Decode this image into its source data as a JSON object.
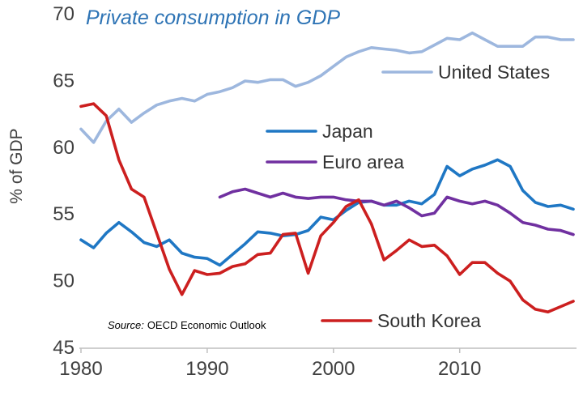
{
  "chart_data": {
    "type": "line",
    "title": "Private consumption in GDP",
    "ylabel": "% of GDP",
    "xlabel": "",
    "xlim": [
      1980,
      2019
    ],
    "ylim": [
      45,
      70
    ],
    "x_ticks": [
      "1980",
      "1990",
      "2000",
      "2010"
    ],
    "y_ticks": [
      "45",
      "50",
      "55",
      "60",
      "65",
      "70"
    ],
    "grid": false,
    "legend_placement": "inline",
    "source_label": "Source:",
    "source_text": "OECD Economic Outlook",
    "series": [
      {
        "name": "United States",
        "color": "#9db7de",
        "points": [
          [
            1980,
            61.3
          ],
          [
            1981,
            60.3
          ],
          [
            1982,
            61.9
          ],
          [
            1983,
            62.8
          ],
          [
            1984,
            61.8
          ],
          [
            1985,
            62.5
          ],
          [
            1986,
            63.1
          ],
          [
            1987,
            63.4
          ],
          [
            1988,
            63.6
          ],
          [
            1989,
            63.4
          ],
          [
            1990,
            63.9
          ],
          [
            1991,
            64.1
          ],
          [
            1992,
            64.4
          ],
          [
            1993,
            64.9
          ],
          [
            1994,
            64.8
          ],
          [
            1995,
            65.0
          ],
          [
            1996,
            65.0
          ],
          [
            1997,
            64.5
          ],
          [
            1998,
            64.8
          ],
          [
            1999,
            65.3
          ],
          [
            2000,
            66.0
          ],
          [
            2001,
            66.7
          ],
          [
            2002,
            67.1
          ],
          [
            2003,
            67.4
          ],
          [
            2004,
            67.3
          ],
          [
            2005,
            67.2
          ],
          [
            2006,
            67.0
          ],
          [
            2007,
            67.1
          ],
          [
            2008,
            67.6
          ],
          [
            2009,
            68.1
          ],
          [
            2010,
            68.0
          ],
          [
            2011,
            68.5
          ],
          [
            2012,
            68.0
          ],
          [
            2013,
            67.5
          ],
          [
            2014,
            67.5
          ],
          [
            2015,
            67.5
          ],
          [
            2016,
            68.2
          ],
          [
            2017,
            68.2
          ],
          [
            2018,
            68.0
          ],
          [
            2019,
            68.0
          ]
        ]
      },
      {
        "name": "Japan",
        "color": "#1f77c4",
        "points": [
          [
            1980,
            53.0
          ],
          [
            1981,
            52.4
          ],
          [
            1982,
            53.5
          ],
          [
            1983,
            54.3
          ],
          [
            1984,
            53.6
          ],
          [
            1985,
            52.8
          ],
          [
            1986,
            52.5
          ],
          [
            1987,
            53.0
          ],
          [
            1988,
            52.0
          ],
          [
            1989,
            51.7
          ],
          [
            1990,
            51.6
          ],
          [
            1991,
            51.1
          ],
          [
            1992,
            51.9
          ],
          [
            1993,
            52.7
          ],
          [
            1994,
            53.6
          ],
          [
            1995,
            53.5
          ],
          [
            1996,
            53.3
          ],
          [
            1997,
            53.4
          ],
          [
            1998,
            53.7
          ],
          [
            1999,
            54.7
          ],
          [
            2000,
            54.5
          ],
          [
            2001,
            55.2
          ],
          [
            2002,
            55.8
          ],
          [
            2003,
            55.9
          ],
          [
            2004,
            55.6
          ],
          [
            2005,
            55.6
          ],
          [
            2006,
            55.9
          ],
          [
            2007,
            55.7
          ],
          [
            2008,
            56.4
          ],
          [
            2009,
            58.5
          ],
          [
            2010,
            57.8
          ],
          [
            2011,
            58.3
          ],
          [
            2012,
            58.6
          ],
          [
            2013,
            59.0
          ],
          [
            2014,
            58.5
          ],
          [
            2015,
            56.7
          ],
          [
            2016,
            55.8
          ],
          [
            2017,
            55.5
          ],
          [
            2018,
            55.6
          ],
          [
            2019,
            55.3
          ]
        ]
      },
      {
        "name": "Euro area",
        "color": "#7030a0",
        "points": [
          [
            1991,
            56.2
          ],
          [
            1992,
            56.6
          ],
          [
            1993,
            56.8
          ],
          [
            1994,
            56.5
          ],
          [
            1995,
            56.2
          ],
          [
            1996,
            56.5
          ],
          [
            1997,
            56.2
          ],
          [
            1998,
            56.1
          ],
          [
            1999,
            56.2
          ],
          [
            2000,
            56.2
          ],
          [
            2001,
            56.0
          ],
          [
            2002,
            55.9
          ],
          [
            2003,
            55.9
          ],
          [
            2004,
            55.6
          ],
          [
            2005,
            55.9
          ],
          [
            2006,
            55.4
          ],
          [
            2007,
            54.8
          ],
          [
            2008,
            55.0
          ],
          [
            2009,
            56.2
          ],
          [
            2010,
            55.9
          ],
          [
            2011,
            55.7
          ],
          [
            2012,
            55.9
          ],
          [
            2013,
            55.6
          ],
          [
            2014,
            55.0
          ],
          [
            2015,
            54.3
          ],
          [
            2016,
            54.1
          ],
          [
            2017,
            53.8
          ],
          [
            2018,
            53.7
          ],
          [
            2019,
            53.4
          ]
        ]
      },
      {
        "name": "South Korea",
        "color": "#cc1f1f",
        "points": [
          [
            1980,
            63.0
          ],
          [
            1981,
            63.2
          ],
          [
            1982,
            62.3
          ],
          [
            1983,
            59.0
          ],
          [
            1984,
            56.8
          ],
          [
            1985,
            56.2
          ],
          [
            1986,
            53.5
          ],
          [
            1987,
            50.8
          ],
          [
            1988,
            48.9
          ],
          [
            1989,
            50.7
          ],
          [
            1990,
            50.4
          ],
          [
            1991,
            50.5
          ],
          [
            1992,
            51.0
          ],
          [
            1993,
            51.2
          ],
          [
            1994,
            51.9
          ],
          [
            1995,
            52.0
          ],
          [
            1996,
            53.4
          ],
          [
            1997,
            53.5
          ],
          [
            1998,
            50.5
          ],
          [
            1999,
            53.3
          ],
          [
            2000,
            54.3
          ],
          [
            2001,
            55.5
          ],
          [
            2002,
            56.0
          ],
          [
            2003,
            54.2
          ],
          [
            2004,
            51.5
          ],
          [
            2005,
            52.2
          ],
          [
            2006,
            53.0
          ],
          [
            2007,
            52.5
          ],
          [
            2008,
            52.6
          ],
          [
            2009,
            51.8
          ],
          [
            2010,
            50.4
          ],
          [
            2011,
            51.3
          ],
          [
            2012,
            51.3
          ],
          [
            2013,
            50.5
          ],
          [
            2014,
            49.9
          ],
          [
            2015,
            48.5
          ],
          [
            2016,
            47.8
          ],
          [
            2017,
            47.6
          ],
          [
            2018,
            48.0
          ],
          [
            2019,
            48.4
          ]
        ]
      }
    ]
  }
}
